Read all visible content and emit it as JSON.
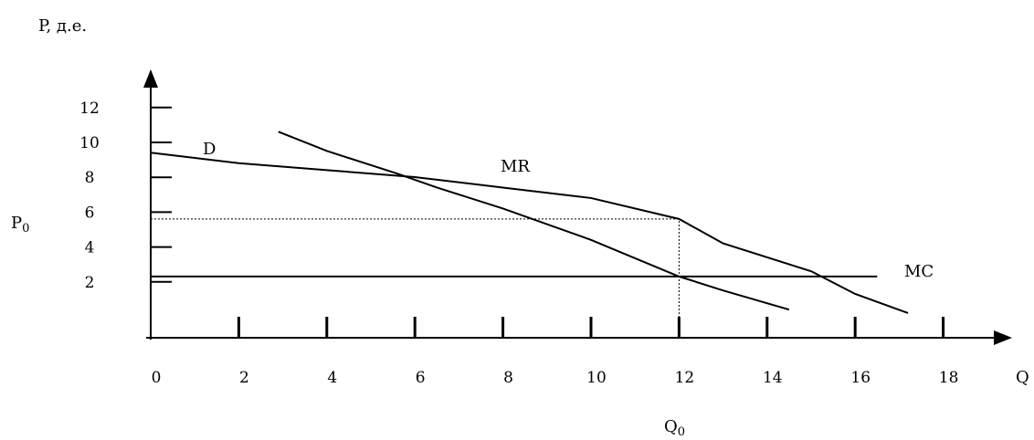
{
  "chart_data": {
    "type": "line",
    "ylabel": "P, д.е.",
    "xlabel": "Q",
    "x_ticks": [
      0,
      2,
      4,
      6,
      8,
      10,
      12,
      14,
      16,
      18
    ],
    "y_ticks": [
      2,
      4,
      6,
      8,
      10,
      12
    ],
    "xlim": [
      0,
      19.5
    ],
    "ylim": [
      0,
      13.5
    ],
    "series": [
      {
        "name": "D",
        "points": [
          [
            0,
            10.3
          ],
          [
            2,
            9.7
          ],
          [
            4,
            9.3
          ],
          [
            6,
            8.9
          ],
          [
            8,
            8.3
          ],
          [
            10,
            7.7
          ],
          [
            12,
            6.5
          ],
          [
            13,
            5.1
          ],
          [
            15,
            3.5
          ],
          [
            16,
            2.2
          ],
          [
            17.2,
            1.1
          ]
        ]
      },
      {
        "name": "MR",
        "points": [
          [
            2.9,
            11.5
          ],
          [
            4,
            10.4
          ],
          [
            5.6,
            9.1
          ],
          [
            6.5,
            8.3
          ],
          [
            8,
            7.1
          ],
          [
            10,
            5.3
          ],
          [
            12,
            3.2
          ],
          [
            13,
            2.4
          ],
          [
            14.5,
            1.3
          ]
        ]
      },
      {
        "name": "MC",
        "points": [
          [
            0,
            3.2
          ],
          [
            16.5,
            3.2
          ]
        ]
      }
    ],
    "reference_lines": [
      {
        "label": "P0",
        "y": 6.5,
        "x_from": 0,
        "x_to": 12
      },
      {
        "label": "Q0",
        "x": 12,
        "y_from": 0,
        "y_to": 6.5
      }
    ],
    "annotations": {
      "p0": "P0",
      "q0": "Q0"
    }
  }
}
